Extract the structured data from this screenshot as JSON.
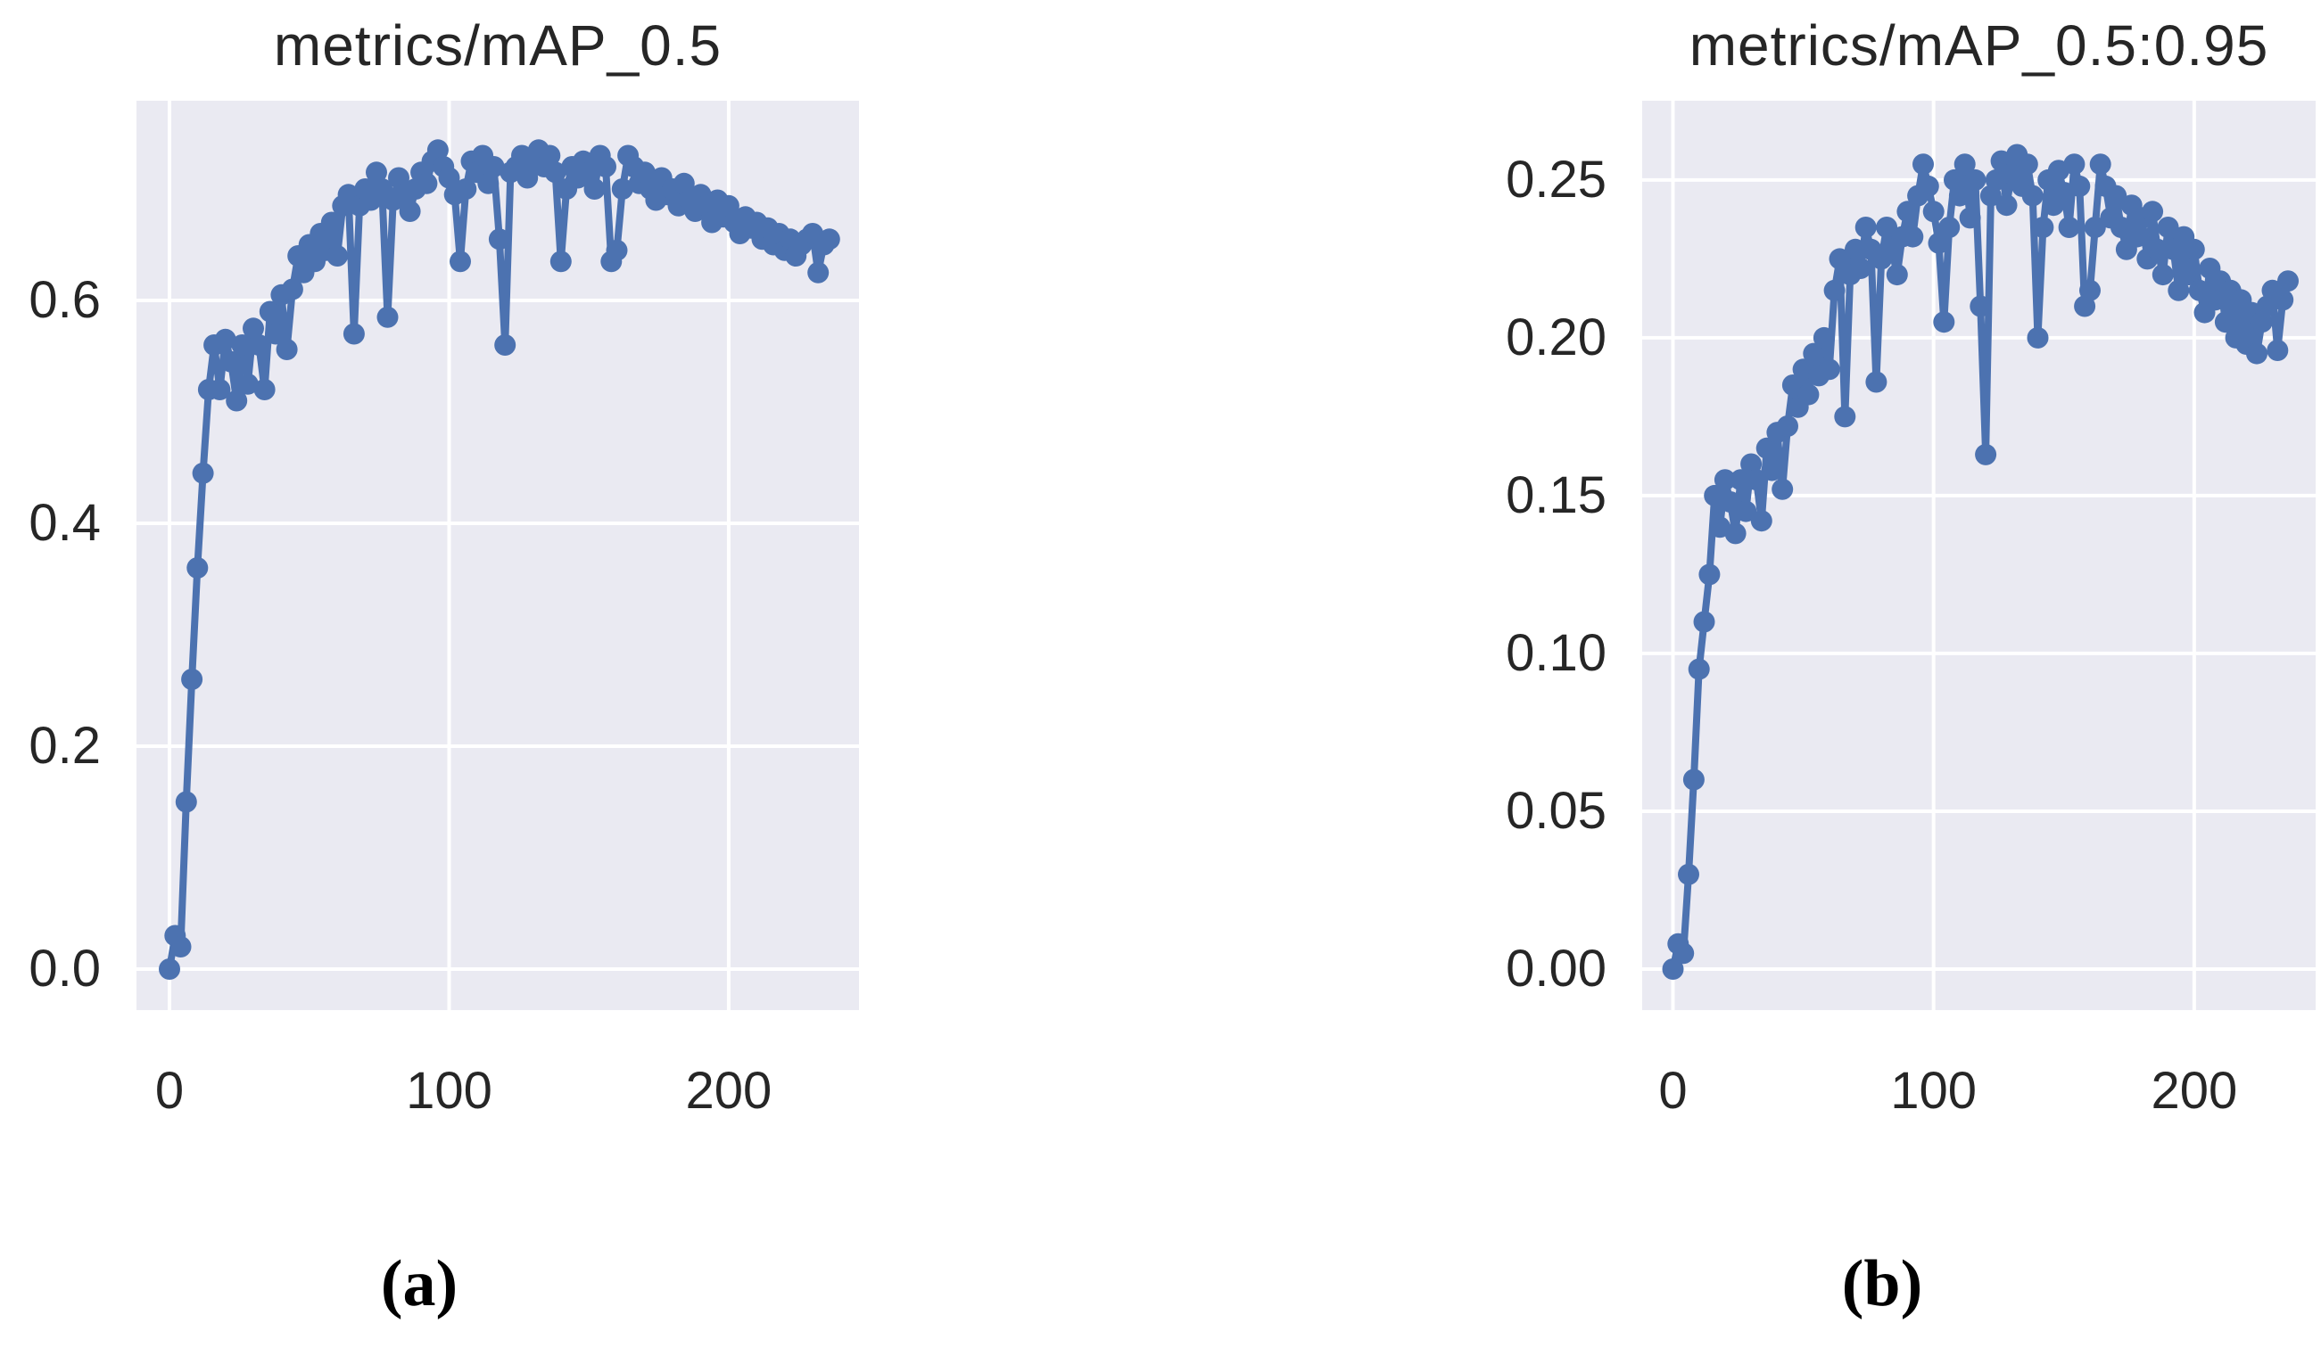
{
  "colors": {
    "line": "#4C72B0",
    "plot_bg": "#EAEAF2",
    "grid": "#FFFFFF",
    "text": "#262626"
  },
  "chart_data": [
    {
      "type": "line",
      "title": "metrics/mAP_0.5",
      "caption": "(a)",
      "xlabel": "",
      "ylabel": "",
      "legend": "none",
      "grid": true,
      "xlim": [
        -11.8,
        246.6
      ],
      "ylim": [
        -0.0368,
        0.7792
      ],
      "xticks": [
        0,
        100,
        200
      ],
      "xtick_labels": [
        "0",
        "100",
        "200"
      ],
      "yticks": [
        0.0,
        0.2,
        0.4,
        0.6
      ],
      "ytick_labels": [
        "0.0",
        "0.2",
        "0.4",
        "0.6"
      ],
      "x": [
        0,
        2,
        4,
        6,
        8,
        10,
        12,
        14,
        16,
        18,
        20,
        22,
        24,
        26,
        28,
        30,
        32,
        34,
        36,
        38,
        40,
        42,
        44,
        46,
        48,
        50,
        52,
        54,
        56,
        58,
        60,
        62,
        64,
        66,
        68,
        70,
        72,
        74,
        76,
        78,
        80,
        82,
        84,
        86,
        88,
        90,
        92,
        94,
        96,
        98,
        100,
        102,
        104,
        106,
        108,
        110,
        112,
        114,
        116,
        118,
        120,
        122,
        124,
        126,
        128,
        130,
        132,
        134,
        136,
        138,
        140,
        142,
        144,
        146,
        148,
        150,
        152,
        154,
        156,
        158,
        160,
        162,
        164,
        166,
        168,
        170,
        172,
        174,
        176,
        178,
        180,
        182,
        184,
        186,
        188,
        190,
        192,
        194,
        196,
        198,
        200,
        202,
        204,
        206,
        208,
        210,
        212,
        214,
        216,
        218,
        220,
        222,
        224,
        226,
        228,
        230,
        232,
        234,
        236
      ],
      "values": [
        0.0,
        0.03,
        0.02,
        0.15,
        0.26,
        0.36,
        0.445,
        0.52,
        0.56,
        0.52,
        0.565,
        0.545,
        0.51,
        0.56,
        0.525,
        0.575,
        0.56,
        0.52,
        0.59,
        0.57,
        0.605,
        0.556,
        0.61,
        0.64,
        0.625,
        0.65,
        0.635,
        0.66,
        0.645,
        0.67,
        0.64,
        0.685,
        0.695,
        0.57,
        0.685,
        0.7,
        0.69,
        0.715,
        0.7,
        0.585,
        0.69,
        0.71,
        0.695,
        0.68,
        0.7,
        0.715,
        0.705,
        0.725,
        0.735,
        0.72,
        0.71,
        0.695,
        0.635,
        0.7,
        0.725,
        0.715,
        0.73,
        0.705,
        0.72,
        0.655,
        0.56,
        0.715,
        0.72,
        0.73,
        0.71,
        0.725,
        0.735,
        0.72,
        0.73,
        0.715,
        0.635,
        0.7,
        0.72,
        0.71,
        0.725,
        0.715,
        0.7,
        0.73,
        0.72,
        0.635,
        0.645,
        0.7,
        0.73,
        0.72,
        0.705,
        0.715,
        0.7,
        0.69,
        0.71,
        0.695,
        0.7,
        0.685,
        0.705,
        0.69,
        0.68,
        0.695,
        0.685,
        0.67,
        0.69,
        0.675,
        0.685,
        0.67,
        0.66,
        0.675,
        0.665,
        0.67,
        0.655,
        0.665,
        0.65,
        0.66,
        0.645,
        0.655,
        0.64,
        0.65,
        0.655,
        0.66,
        0.625,
        0.65,
        0.655
      ]
    },
    {
      "type": "line",
      "title": "metrics/mAP_0.5:0.95",
      "caption": "(b)",
      "xlabel": "",
      "ylabel": "",
      "legend": "none",
      "grid": true,
      "xlim": [
        -11.8,
        246.6
      ],
      "ylim": [
        -0.013,
        0.2751
      ],
      "xticks": [
        0,
        100,
        200
      ],
      "xtick_labels": [
        "0",
        "100",
        "200"
      ],
      "yticks": [
        0.0,
        0.05,
        0.1,
        0.15,
        0.2,
        0.25
      ],
      "ytick_labels": [
        "0.00",
        "0.05",
        "0.10",
        "0.15",
        "0.20",
        "0.25"
      ],
      "x": [
        0,
        2,
        4,
        6,
        8,
        10,
        12,
        14,
        16,
        18,
        20,
        22,
        24,
        26,
        28,
        30,
        32,
        34,
        36,
        38,
        40,
        42,
        44,
        46,
        48,
        50,
        52,
        54,
        56,
        58,
        60,
        62,
        64,
        66,
        68,
        70,
        72,
        74,
        76,
        78,
        80,
        82,
        84,
        86,
        88,
        90,
        92,
        94,
        96,
        98,
        100,
        102,
        104,
        106,
        108,
        110,
        112,
        114,
        116,
        118,
        120,
        122,
        124,
        126,
        128,
        130,
        132,
        134,
        136,
        138,
        140,
        142,
        144,
        146,
        148,
        150,
        152,
        154,
        156,
        158,
        160,
        162,
        164,
        166,
        168,
        170,
        172,
        174,
        176,
        178,
        180,
        182,
        184,
        186,
        188,
        190,
        192,
        194,
        196,
        198,
        200,
        202,
        204,
        206,
        208,
        210,
        212,
        214,
        216,
        218,
        220,
        222,
        224,
        226,
        228,
        230,
        232,
        234,
        236
      ],
      "values": [
        0.0,
        0.008,
        0.005,
        0.03,
        0.06,
        0.095,
        0.11,
        0.125,
        0.15,
        0.14,
        0.155,
        0.148,
        0.138,
        0.155,
        0.145,
        0.16,
        0.155,
        0.142,
        0.165,
        0.158,
        0.17,
        0.152,
        0.172,
        0.185,
        0.178,
        0.19,
        0.182,
        0.195,
        0.188,
        0.2,
        0.19,
        0.215,
        0.225,
        0.175,
        0.22,
        0.228,
        0.222,
        0.235,
        0.228,
        0.186,
        0.225,
        0.235,
        0.228,
        0.22,
        0.232,
        0.24,
        0.232,
        0.245,
        0.255,
        0.248,
        0.24,
        0.23,
        0.205,
        0.235,
        0.25,
        0.245,
        0.255,
        0.238,
        0.25,
        0.21,
        0.163,
        0.245,
        0.25,
        0.256,
        0.242,
        0.252,
        0.258,
        0.248,
        0.255,
        0.245,
        0.2,
        0.235,
        0.25,
        0.242,
        0.253,
        0.246,
        0.235,
        0.255,
        0.248,
        0.21,
        0.215,
        0.235,
        0.255,
        0.248,
        0.238,
        0.245,
        0.235,
        0.228,
        0.242,
        0.232,
        0.238,
        0.225,
        0.24,
        0.228,
        0.22,
        0.235,
        0.228,
        0.215,
        0.232,
        0.22,
        0.228,
        0.215,
        0.208,
        0.222,
        0.212,
        0.218,
        0.205,
        0.215,
        0.2,
        0.212,
        0.198,
        0.208,
        0.195,
        0.205,
        0.21,
        0.215,
        0.196,
        0.212,
        0.218
      ]
    }
  ]
}
